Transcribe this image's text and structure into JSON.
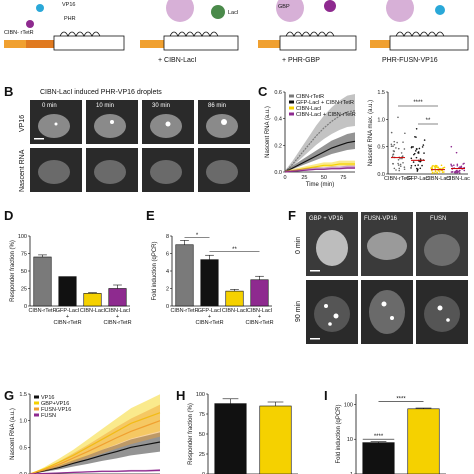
{
  "panel_letters": [
    "B",
    "C",
    "D",
    "E",
    "F",
    "G",
    "H",
    "I"
  ],
  "schematic": {
    "label_vp16": "VP16",
    "label_phr": "PHR",
    "label_cibn_rtetr": "CIBN-\nrTetR",
    "label_laci": "LacI",
    "label_gbp": "GBP",
    "caption_1": "+ CIBN-LacI",
    "caption_2": "+ PHR-GBP",
    "caption_3": "PHR-FUSN-VP16"
  },
  "panel_b": {
    "title": "CIBN-LacI induced PHR-VP16 droplets",
    "row_labels": [
      "VP16",
      "Nascent RNA"
    ],
    "times": [
      "0 min",
      "10 min",
      "30 min",
      "86 min"
    ]
  },
  "panel_f": {
    "columns": [
      "GBP + VP16",
      "FUSN-VP16",
      "FUSN"
    ],
    "rows": [
      "0 min",
      "90 min"
    ]
  },
  "colors": {
    "gray": "#7a7a7a",
    "black": "#111111",
    "yellow": "#f5d100",
    "purple": "#8e2a8f",
    "orange": "#f0a030",
    "cell_bg": "#2a2a2a"
  },
  "chart_data": [
    {
      "panel": "C",
      "type": "line",
      "xlabel": "Time (min)",
      "ylabel": "Nascent RNA (a.u.)",
      "xlim": [
        0,
        90
      ],
      "ylim": [
        0,
        0.6
      ],
      "xticks": [
        "0",
        "25",
        "50",
        "75"
      ],
      "yticks": [
        "0.0",
        "0.2",
        "0.4",
        "0.6"
      ],
      "legend": [
        "CIBN-rTetR",
        "GFP-LacI + CIBN-rTetR",
        "CIBN-LacI",
        "CIBN-LacI + CIBN-rTetR"
      ],
      "x": [
        0,
        10,
        20,
        30,
        40,
        50,
        60,
        70,
        80,
        90
      ],
      "series": [
        {
          "name": "CIBN-rTetR",
          "color": "#7a7a7a",
          "values": [
            0.0,
            0.06,
            0.13,
            0.2,
            0.27,
            0.33,
            0.38,
            0.42,
            0.45,
            0.46
          ]
        },
        {
          "name": "GFP-LacI + CIBN-rTetR",
          "color": "#111111",
          "values": [
            0.0,
            0.03,
            0.06,
            0.09,
            0.12,
            0.15,
            0.18,
            0.2,
            0.22,
            0.23
          ]
        },
        {
          "name": "CIBN-LacI",
          "color": "#f5d100",
          "values": [
            0.0,
            0.01,
            0.02,
            0.03,
            0.04,
            0.05,
            0.05,
            0.06,
            0.06,
            0.06
          ]
        },
        {
          "name": "CIBN-LacI + CIBN-rTetR",
          "color": "#8e2a8f",
          "values": [
            0.0,
            0.005,
            0.01,
            0.015,
            0.02,
            0.02,
            0.025,
            0.025,
            0.03,
            0.03
          ]
        }
      ]
    },
    {
      "panel": "C-right",
      "type": "scatter",
      "ylabel": "Nascent RNA max. (a.u.)",
      "ylim": [
        0,
        1.5
      ],
      "yticks": [
        "0.0",
        "0.5",
        "1.0",
        "1.5"
      ],
      "categories": [
        "CIBN-rTetR",
        "GFP-LacI + CIBN-rTetR",
        "CIBN-LacI",
        "CIBN-LacI + CIBN-rTetR"
      ],
      "annotations": [
        "****",
        "**"
      ],
      "means": [
        0.3,
        0.25,
        0.08,
        0.1
      ]
    },
    {
      "panel": "D",
      "type": "bar",
      "ylabel": "Responder fraction (%)",
      "ylim": [
        0,
        100
      ],
      "yticks": [
        "0",
        "25",
        "50",
        "75",
        "100"
      ],
      "categories": [
        "CIBN-rTetR",
        "GFP-LacI + CIBN-rTetR",
        "CIBN-LacI",
        "CIBN-LacI + CIBN-rTetR"
      ],
      "values": [
        70,
        42,
        18,
        25
      ],
      "errors": [
        3,
        0,
        1,
        5
      ],
      "colors": [
        "#7a7a7a",
        "#111111",
        "#f5d100",
        "#8e2a8f"
      ]
    },
    {
      "panel": "E",
      "type": "bar",
      "ylabel": "Fold induction (qPCR)",
      "ylim": [
        0,
        8
      ],
      "yticks": [
        "0",
        "2",
        "4",
        "6",
        "8"
      ],
      "categories": [
        "CIBN-rTetR",
        "GFP-LacI + CIBN-rTetR",
        "CIBN-LacI",
        "CIBN-LacI + CIBN-rTetR"
      ],
      "values": [
        7.0,
        5.3,
        1.7,
        3.0
      ],
      "errors": [
        0.5,
        0.5,
        0.2,
        0.4
      ],
      "colors": [
        "#7a7a7a",
        "#111111",
        "#f5d100",
        "#8e2a8f"
      ],
      "annotations": [
        "*",
        "**"
      ]
    },
    {
      "panel": "G",
      "type": "line",
      "ylabel": "Nascent RNA (a.u.)",
      "ylim": [
        0,
        1.5
      ],
      "yticks": [
        "0.0",
        "0.5",
        "1.0",
        "1.5"
      ],
      "legend": [
        "VP16",
        "GBP+VP16",
        "FUSN-VP16",
        "FUSN"
      ],
      "x": [
        0,
        10,
        20,
        30,
        40,
        50,
        60,
        70,
        80,
        90
      ],
      "series": [
        {
          "name": "VP16",
          "color": "#111111",
          "values": [
            0.0,
            0.06,
            0.12,
            0.2,
            0.27,
            0.35,
            0.42,
            0.5,
            0.55,
            0.6
          ]
        },
        {
          "name": "GBP+VP16",
          "color": "#f5d100",
          "values": [
            0.0,
            0.1,
            0.22,
            0.35,
            0.5,
            0.65,
            0.8,
            0.95,
            1.05,
            1.15
          ]
        },
        {
          "name": "FUSN-VP16",
          "color": "#f0a030",
          "values": [
            0.0,
            0.08,
            0.18,
            0.3,
            0.42,
            0.55,
            0.68,
            0.8,
            0.9,
            1.0
          ]
        },
        {
          "name": "FUSN",
          "color": "#8e2a8f",
          "values": [
            0.0,
            0.01,
            0.02,
            0.03,
            0.04,
            0.05,
            0.05,
            0.06,
            0.06,
            0.07
          ]
        }
      ]
    },
    {
      "panel": "H",
      "type": "bar",
      "ylabel": "Responder fraction (%)",
      "ylim": [
        0,
        100
      ],
      "yticks": [
        "0",
        "25",
        "50",
        "75",
        "100"
      ],
      "values": [
        88,
        85
      ],
      "errors": [
        6,
        5
      ],
      "colors": [
        "#111111",
        "#f5d100"
      ]
    },
    {
      "panel": "I",
      "type": "bar",
      "ylabel": "Fold induction (qPCR)",
      "scale": "log",
      "yticks": [
        "1",
        "10",
        "100"
      ],
      "values": [
        8,
        75
      ],
      "errors": [
        0.5,
        4
      ],
      "colors": [
        "#111111",
        "#f5d100"
      ],
      "annotations": [
        "****",
        "****"
      ]
    }
  ]
}
